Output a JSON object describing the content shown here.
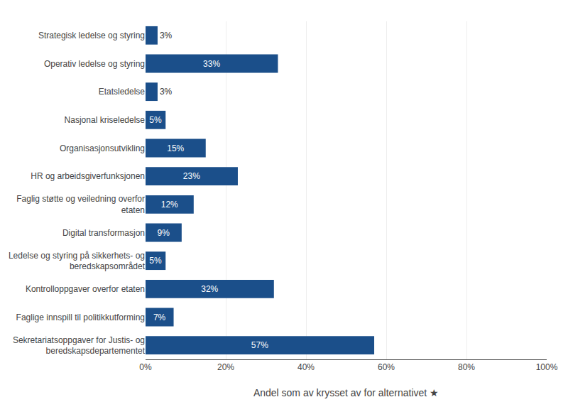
{
  "chart_data": {
    "type": "bar",
    "orientation": "horizontal",
    "categories": [
      "Strategisk ledelse og styring",
      "Operativ ledelse og styring",
      "Etatsledelse",
      "Nasjonal kriseledelse",
      "Organisasjonsutvikling",
      "HR og arbeidsgiverfunksjonen",
      "Faglig støtte og veiledning overfor\netaten",
      "Digital transformasjon",
      "Ledelse og styring på sikkerhets- og\nberedskapsområdet",
      "Kontrolloppgaver overfor etaten",
      "Faglige innspill til politikkutforming",
      "Sekretariatsoppgaver for Justis- og\nberedskapsdepartementet"
    ],
    "values": [
      3,
      33,
      3,
      5,
      15,
      23,
      12,
      9,
      5,
      32,
      7,
      57
    ],
    "value_labels": [
      "3%",
      "33%",
      "3%",
      "5%",
      "15%",
      "23%",
      "12%",
      "9%",
      "5%",
      "32%",
      "7%",
      "57%"
    ],
    "data_labels": true,
    "color": "#1B4F8A",
    "xlabel": "Andel som av krysset av for alternativet ★",
    "xlim": [
      0,
      100
    ],
    "xticks": [
      {
        "value": 0,
        "label": "0%"
      },
      {
        "value": 20,
        "label": "20%"
      },
      {
        "value": 40,
        "label": "40%"
      },
      {
        "value": 60,
        "label": "60%"
      },
      {
        "value": 80,
        "label": "80%"
      },
      {
        "value": 100,
        "label": "100%"
      }
    ],
    "grid": true
  }
}
